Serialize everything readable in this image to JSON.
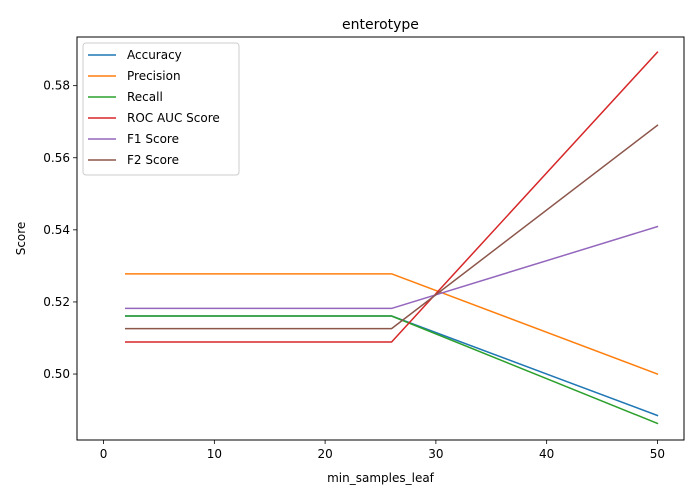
{
  "chart_data": {
    "type": "line",
    "title": "enterotype",
    "xlabel": "min_samples_leaf",
    "ylabel": "Score",
    "xlim": [
      -2.4,
      52.4
    ],
    "ylim": [
      0.4817,
      0.5935
    ],
    "xticks": [
      0,
      10,
      20,
      30,
      40,
      50
    ],
    "xtick_labels": [
      "0",
      "10",
      "20",
      "30",
      "40",
      "50"
    ],
    "yticks": [
      0.5,
      0.52,
      0.54,
      0.56,
      0.58
    ],
    "ytick_labels": [
      "0.50",
      "0.52",
      "0.54",
      "0.56",
      "0.58"
    ],
    "grid": false,
    "legend_position": "upper-left",
    "x": [
      2,
      26,
      50
    ],
    "series": [
      {
        "name": "Accuracy",
        "color": "#1f77b4",
        "values": [
          0.5161,
          0.5161,
          0.4885
        ]
      },
      {
        "name": "Precision",
        "color": "#ff7f0e",
        "values": [
          0.5278,
          0.5278,
          0.5
        ]
      },
      {
        "name": "Recall",
        "color": "#2ca02c",
        "values": [
          0.5161,
          0.5161,
          0.4863
        ]
      },
      {
        "name": "ROC AUC Score",
        "color": "#d62728",
        "values": [
          0.5089,
          0.5089,
          0.5893
        ]
      },
      {
        "name": "F1 Score",
        "color": "#9467bd",
        "values": [
          0.5182,
          0.5182,
          0.5409
        ]
      },
      {
        "name": "F2 Score",
        "color": "#8c564b",
        "values": [
          0.5126,
          0.5126,
          0.569
        ]
      }
    ]
  }
}
